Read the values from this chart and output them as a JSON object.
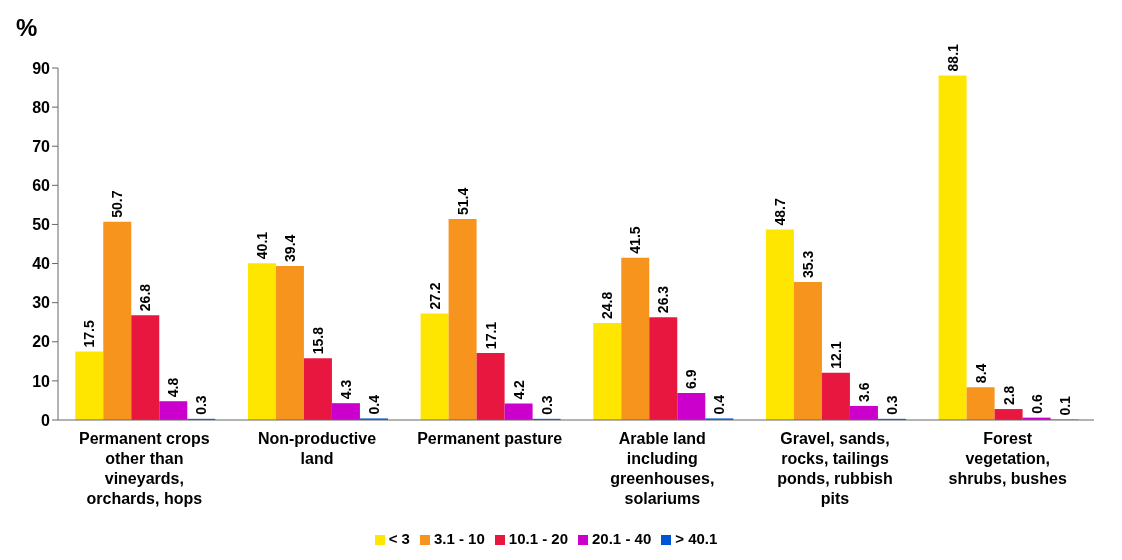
{
  "chart_data": {
    "type": "bar",
    "ylabel": "%",
    "categories": [
      "Permanent crops other than vineyards, orchards, hops",
      "Non-productive land",
      "Permanent pasture",
      "Arable land including greenhouses, solariums",
      "Gravel, sands, rocks, tailings ponds, rubbish pits",
      "Forest vegetation, shrubs, bushes"
    ],
    "series": [
      {
        "name": "< 3",
        "color": "#ffe600",
        "values": [
          17.5,
          40.1,
          27.2,
          24.8,
          48.7,
          88.1
        ]
      },
      {
        "name": "3.1 - 10",
        "color": "#f7941d",
        "values": [
          50.7,
          39.4,
          51.4,
          41.5,
          35.3,
          8.4
        ]
      },
      {
        "name": "10.1 - 20",
        "color": "#e8173f",
        "values": [
          26.8,
          15.8,
          17.1,
          26.3,
          12.1,
          2.8
        ]
      },
      {
        "name": "20.1 - 40",
        "color": "#cc00cc",
        "values": [
          4.8,
          4.3,
          4.2,
          6.9,
          3.6,
          0.6
        ]
      },
      {
        "name": "> 40.1",
        "color": "#0055d4",
        "values": [
          0.3,
          0.4,
          0.3,
          0.4,
          0.3,
          0.1
        ]
      }
    ],
    "ylim": [
      0,
      90
    ],
    "yticks": [
      0,
      10,
      20,
      30,
      40,
      50,
      60,
      70,
      80,
      90
    ],
    "grid": false,
    "legend": "bottom",
    "data_labels": true
  }
}
